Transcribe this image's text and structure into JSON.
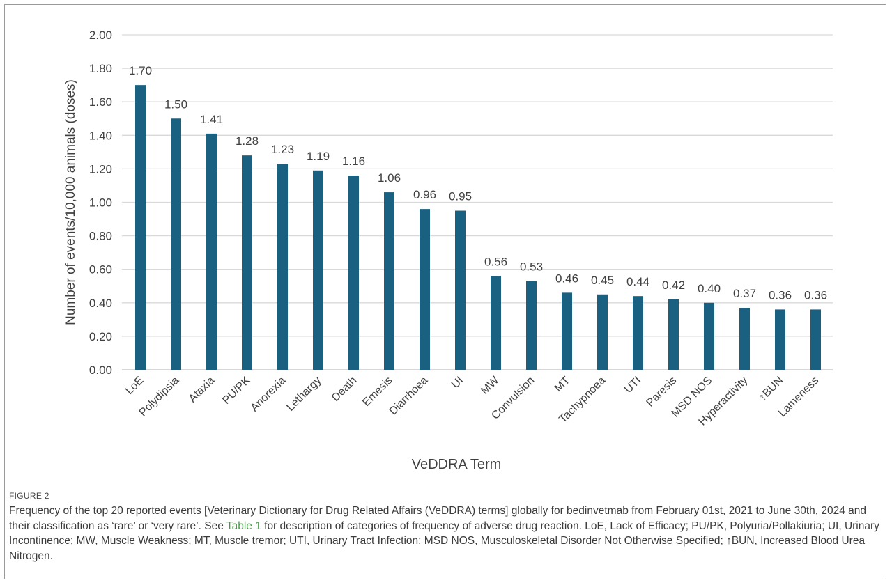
{
  "chart_data": {
    "type": "bar",
    "categories": [
      "LoE",
      "Polydipsia",
      "Ataxia",
      "PU/PK",
      "Anorexia",
      "Lethargy",
      "Death",
      "Emesis",
      "Diarrhoea",
      "UI",
      "MW",
      "Convulsion",
      "MT",
      "Tachypnoea",
      "UTI",
      "Paresis",
      "MSD NOS",
      "Hyperactivity",
      "↑BUN",
      "Lameness"
    ],
    "values": [
      1.7,
      1.5,
      1.41,
      1.28,
      1.23,
      1.19,
      1.16,
      1.06,
      0.96,
      0.95,
      0.56,
      0.53,
      0.46,
      0.45,
      0.44,
      0.42,
      0.4,
      0.37,
      0.36,
      0.36
    ],
    "data_labels": [
      "1.70",
      "1.50",
      "1.41",
      "1.28",
      "1.23",
      "1.19",
      "1.16",
      "1.06",
      "0.96",
      "0.95",
      "0.56",
      "0.53",
      "0.46",
      "0.45",
      "0.44",
      "0.42",
      "0.40",
      "0.37",
      "0.36",
      "0.36"
    ],
    "title": "",
    "xlabel": "VeDDRA Term",
    "ylabel": "Number of events/10,000 animals (doses)",
    "ylim": [
      0,
      2.0
    ],
    "yticks": [
      "0.00",
      "0.20",
      "0.40",
      "0.60",
      "0.80",
      "1.00",
      "1.20",
      "1.40",
      "1.60",
      "1.80",
      "2.00"
    ],
    "grid": true,
    "bar_color": "#1a6080",
    "grid_color": "#d9d9d9"
  },
  "caption": {
    "label": "FIGURE 2",
    "text_before_link": "Frequency of the top 20 reported events [Veterinary Dictionary for Drug Related Affairs (VeDDRA) terms] globally for bedinvetmab from February 01st, 2021 to June 30th, 2024 and their classification as ‘rare’ or ‘very rare’. See ",
    "link_text": "Table 1",
    "text_after_link": " for description of categories of frequency of adverse drug reaction. LoE, Lack of Efficacy; PU/PK, Polyuria/Pollakiuria; UI, Urinary Incontinence; MW, Muscle Weakness; MT, Muscle tremor; UTI, Urinary Tract Infection; MSD NOS, Musculoskeletal Disorder Not Otherwise Specified; ↑BUN, Increased Blood Urea Nitrogen.",
    "link_color": "#4a9a4a"
  }
}
